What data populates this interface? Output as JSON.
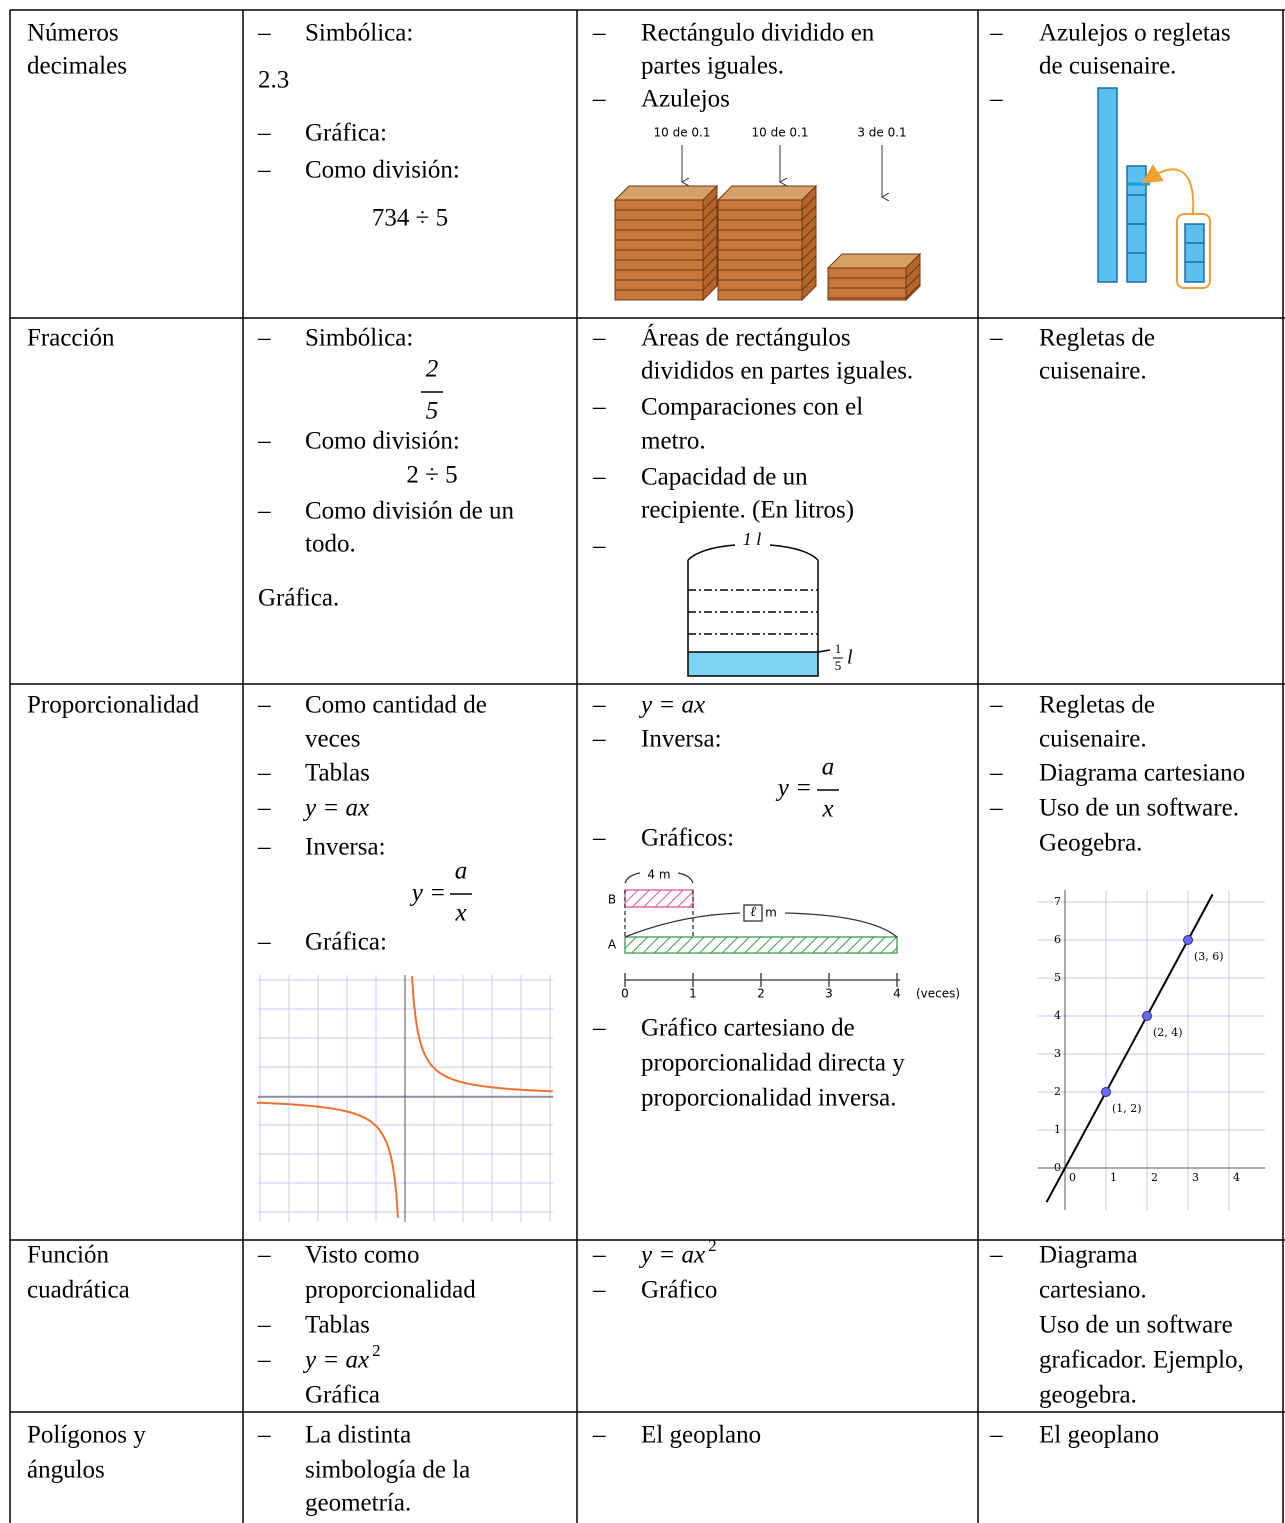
{
  "bullet": "–",
  "table": {
    "rows": [
      {
        "cells": [
          [
            "Números",
            "decimales"
          ],
          [
            "Simbólica:",
            "2.3",
            "Gráfica:",
            "Como división:",
            "734 ÷ 5"
          ],
          [
            "Rectángulo dividido en",
            "partes iguales.",
            "Azulejos"
          ],
          [
            "Azulejos o regletas",
            "de cuisenaire."
          ]
        ]
      },
      {
        "cells": [
          [
            "Fracción"
          ],
          [
            "Simbólica:",
            "2",
            "5",
            "Como división:",
            "2 ÷ 5",
            "Como división de un",
            "todo.",
            "Gráfica."
          ],
          [
            "Áreas de rectángulos",
            "divididos en partes iguales.",
            "Comparaciones con el",
            "metro.",
            "Capacidad de un",
            "recipiente. (En litros)"
          ],
          [
            "Regletas de",
            "cuisenaire."
          ]
        ]
      },
      {
        "cells": [
          [
            "Proporcionalidad"
          ],
          [
            "Como cantidad de",
            "veces",
            "Tablas",
            "y = ax",
            "Inversa:",
            "y =",
            "a",
            "x",
            "Gráfica:"
          ],
          [
            "y = ax",
            "Inversa:",
            "y =",
            "a",
            "x",
            "Gráficos:",
            "Gráfico cartesiano de",
            "proporcionalidad directa y",
            "proporcionalidad inversa."
          ],
          [
            "Regletas de",
            "cuisenaire.",
            "Diagrama cartesiano",
            "Uso de un software.",
            "Geogebra."
          ]
        ]
      },
      {
        "cells": [
          [
            "Función",
            "cuadrática"
          ],
          [
            "Visto como",
            "proporcionalidad",
            "Tablas",
            "y = ax",
            "2",
            "Gráfica"
          ],
          [
            "y = ax",
            "2",
            "Gráfico"
          ],
          [
            "Diagrama",
            "cartesiano.",
            "Uso de un software",
            "graficador. Ejemplo,",
            "geogebra."
          ]
        ]
      },
      {
        "cells": [
          [
            "Polígonos y",
            "ángulos"
          ],
          [
            "La distinta",
            "simbología de la",
            "geometría."
          ],
          [
            "El geoplano"
          ],
          [
            "El geoplano"
          ]
        ]
      }
    ]
  },
  "figures": {
    "blocks": {
      "labels": [
        "10 de 0.1",
        "10 de 0.1",
        "3 de 0.1"
      ]
    },
    "container": {
      "labels": [
        "1 l",
        "1",
        "5",
        "l"
      ]
    },
    "segments": {
      "labels": [
        "4 m",
        "B",
        "A",
        "ℓ",
        "m",
        "0",
        "1",
        "2",
        "3",
        "4",
        "(veces)"
      ]
    },
    "geogebra": {
      "xticks": [
        0,
        1,
        2,
        3,
        4
      ],
      "yticks": [
        0,
        1,
        2,
        3,
        4,
        5,
        6,
        7
      ],
      "points": [
        {
          "x": 1,
          "y": 2,
          "label": "(1, 2)"
        },
        {
          "x": 2,
          "y": 4,
          "label": "(2, 4)"
        },
        {
          "x": 3,
          "y": 6,
          "label": "(3, 6)"
        }
      ]
    }
  }
}
